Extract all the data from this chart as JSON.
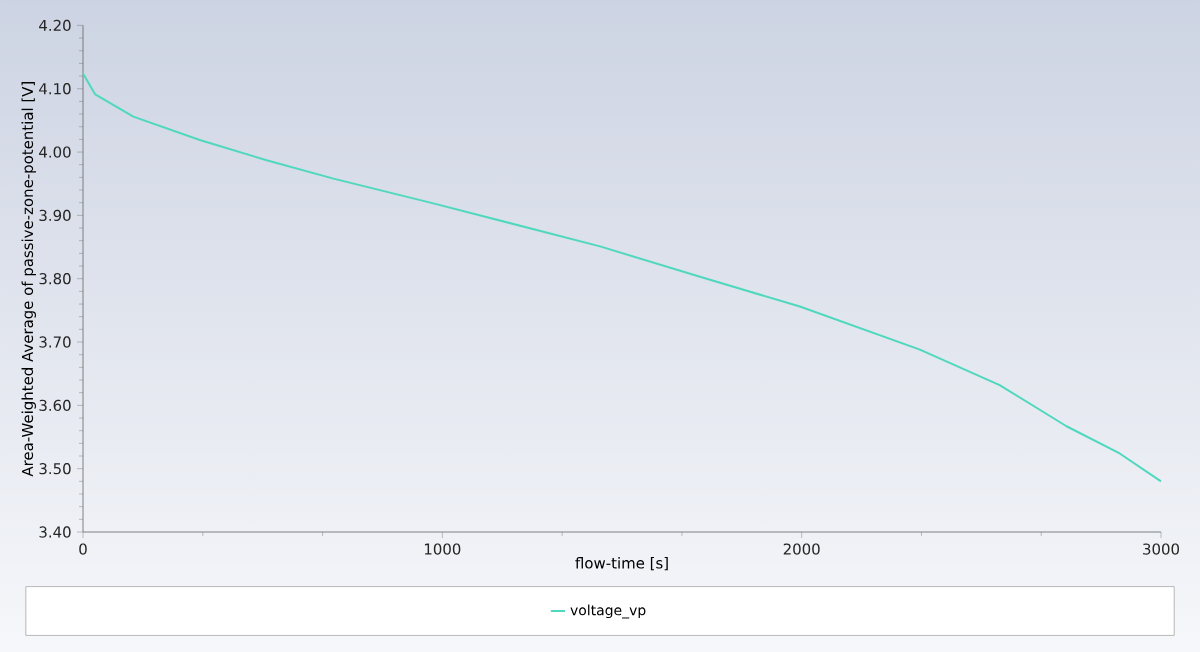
{
  "chart_data": {
    "type": "line",
    "xlabel": "flow-time [s]",
    "ylabel": "Area-Weighted Average of passive-zone-potential [V]",
    "x": [
      0,
      34,
      140,
      325,
      511,
      697,
      975,
      1439,
      1717,
      1995,
      2329,
      2551,
      2737,
      2885,
      3000
    ],
    "series": [
      {
        "name": "voltage_vp",
        "color": "#4fd8bd",
        "values": [
          4.124,
          4.091,
          4.056,
          4.019,
          3.987,
          3.958,
          3.919,
          3.851,
          3.803,
          3.756,
          3.688,
          3.632,
          3.567,
          3.524,
          3.48
        ]
      }
    ],
    "xlim": [
      0,
      3000
    ],
    "ylim": [
      3.4,
      4.2
    ],
    "xticks": [
      0,
      1000,
      2000,
      3000
    ],
    "yticks": [
      {
        "value": 3.4,
        "label": "3.40"
      },
      {
        "value": 3.5,
        "label": "3.50"
      },
      {
        "value": 3.6,
        "label": "3.60"
      },
      {
        "value": 3.7,
        "label": "3.70"
      },
      {
        "value": 3.8,
        "label": "3.80"
      },
      {
        "value": 3.9,
        "label": "3.90"
      },
      {
        "value": 4.0,
        "label": "4.00"
      },
      {
        "value": 4.1,
        "label": "4.10"
      },
      {
        "value": 4.2,
        "label": "4.20"
      }
    ],
    "legend": "bottom"
  }
}
